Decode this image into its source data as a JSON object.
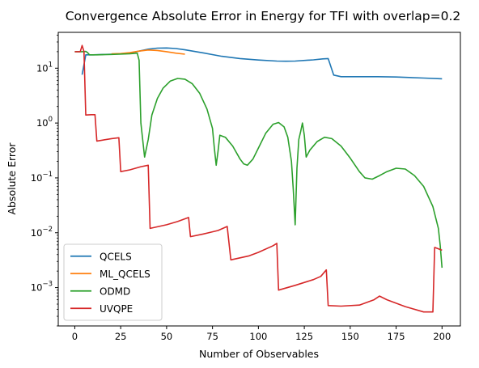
{
  "chart_data": {
    "type": "line",
    "title": "Convergence Absolute Error in Energy for TFI with overlap=0.2",
    "xlabel": "Number of Observables",
    "ylabel": "Absolute Error",
    "xlim": [
      -9,
      210
    ],
    "ylim": [
      0.0002,
      45
    ],
    "yscale": "log",
    "xticks": [
      0,
      25,
      50,
      75,
      100,
      125,
      150,
      175,
      200
    ],
    "yticks": [
      {
        "value": 0.001,
        "base": "10",
        "exp": "−3"
      },
      {
        "value": 0.01,
        "base": "10",
        "exp": "−2"
      },
      {
        "value": 0.1,
        "base": "10",
        "exp": "−1"
      },
      {
        "value": 1,
        "base": "10",
        "exp": "0"
      },
      {
        "value": 10,
        "base": "10",
        "exp": "1"
      }
    ],
    "legend": {
      "position": "lower-left"
    },
    "series": [
      {
        "name": "QCELS",
        "color": "#1f77b4",
        "points": [
          [
            4,
            7.6
          ],
          [
            6,
            17.5
          ],
          [
            10,
            17.5
          ],
          [
            20,
            18.0
          ],
          [
            30,
            18.8
          ],
          [
            35,
            20.5
          ],
          [
            40,
            22.2
          ],
          [
            45,
            23.2
          ],
          [
            50,
            23.4
          ],
          [
            55,
            22.8
          ],
          [
            60,
            21.6
          ],
          [
            70,
            19.0
          ],
          [
            80,
            16.5
          ],
          [
            90,
            15.0
          ],
          [
            100,
            14.1
          ],
          [
            110,
            13.5
          ],
          [
            115,
            13.4
          ],
          [
            120,
            13.5
          ],
          [
            130,
            14.2
          ],
          [
            135,
            14.8
          ],
          [
            138,
            15.0
          ],
          [
            141,
            7.5
          ],
          [
            145,
            7.0
          ],
          [
            155,
            7.0
          ],
          [
            165,
            7.0
          ],
          [
            175,
            6.9
          ],
          [
            190,
            6.6
          ],
          [
            200,
            6.4
          ]
        ]
      },
      {
        "name": "ML_QCELS",
        "color": "#ff7f0e",
        "points": [
          [
            20,
            18.3
          ],
          [
            25,
            18.5
          ],
          [
            30,
            19.2
          ],
          [
            35,
            20.5
          ],
          [
            40,
            21.5
          ],
          [
            45,
            21.0
          ],
          [
            50,
            20.0
          ],
          [
            55,
            18.8
          ],
          [
            60,
            18.0
          ]
        ]
      },
      {
        "name": "ODMD",
        "color": "#2ca02c",
        "points": [
          [
            0,
            20.0
          ],
          [
            4,
            20.0
          ],
          [
            6,
            20.2
          ],
          [
            7,
            19.2
          ],
          [
            8,
            17.5
          ],
          [
            12,
            17.5
          ],
          [
            20,
            17.8
          ],
          [
            30,
            18.3
          ],
          [
            34,
            18.8
          ],
          [
            35,
            14.0
          ],
          [
            36,
            1.0
          ],
          [
            38,
            0.24
          ],
          [
            40,
            0.5
          ],
          [
            42,
            1.4
          ],
          [
            45,
            2.8
          ],
          [
            48,
            4.3
          ],
          [
            52,
            5.8
          ],
          [
            56,
            6.5
          ],
          [
            60,
            6.3
          ],
          [
            64,
            5.2
          ],
          [
            68,
            3.5
          ],
          [
            72,
            1.8
          ],
          [
            75,
            0.8
          ],
          [
            76,
            0.35
          ],
          [
            77,
            0.17
          ],
          [
            78,
            0.3
          ],
          [
            79,
            0.6
          ],
          [
            82,
            0.55
          ],
          [
            86,
            0.38
          ],
          [
            90,
            0.22
          ],
          [
            92,
            0.18
          ],
          [
            94,
            0.17
          ],
          [
            97,
            0.22
          ],
          [
            100,
            0.35
          ],
          [
            104,
            0.65
          ],
          [
            108,
            0.95
          ],
          [
            111,
            1.02
          ],
          [
            114,
            0.85
          ],
          [
            116,
            0.55
          ],
          [
            118,
            0.2
          ],
          [
            119,
            0.06
          ],
          [
            120,
            0.014
          ],
          [
            121,
            0.15
          ],
          [
            122,
            0.5
          ],
          [
            123,
            0.7
          ],
          [
            124,
            1.0
          ],
          [
            125,
            0.6
          ],
          [
            126,
            0.24
          ],
          [
            128,
            0.32
          ],
          [
            132,
            0.46
          ],
          [
            136,
            0.55
          ],
          [
            140,
            0.52
          ],
          [
            145,
            0.38
          ],
          [
            150,
            0.23
          ],
          [
            155,
            0.13
          ],
          [
            158,
            0.1
          ],
          [
            162,
            0.095
          ],
          [
            166,
            0.11
          ],
          [
            170,
            0.13
          ],
          [
            175,
            0.15
          ],
          [
            180,
            0.145
          ],
          [
            185,
            0.11
          ],
          [
            190,
            0.07
          ],
          [
            195,
            0.03
          ],
          [
            198,
            0.012
          ],
          [
            199,
            0.006
          ],
          [
            200,
            0.0023
          ]
        ]
      },
      {
        "name": "UVQPE",
        "color": "#d62728",
        "points": [
          [
            0,
            20.0
          ],
          [
            3,
            20.0
          ],
          [
            4,
            26.0
          ],
          [
            5,
            20.0
          ],
          [
            6,
            1.4
          ],
          [
            9,
            1.42
          ],
          [
            11,
            1.42
          ],
          [
            12,
            0.47
          ],
          [
            20,
            0.52
          ],
          [
            24,
            0.54
          ],
          [
            25,
            0.13
          ],
          [
            30,
            0.14
          ],
          [
            36,
            0.16
          ],
          [
            40,
            0.17
          ],
          [
            41,
            0.012
          ],
          [
            50,
            0.014
          ],
          [
            56,
            0.016
          ],
          [
            62,
            0.019
          ],
          [
            63,
            0.0085
          ],
          [
            70,
            0.0095
          ],
          [
            78,
            0.011
          ],
          [
            83,
            0.013
          ],
          [
            85,
            0.0032
          ],
          [
            95,
            0.0038
          ],
          [
            100,
            0.0044
          ],
          [
            108,
            0.0058
          ],
          [
            110,
            0.0064
          ],
          [
            111,
            0.0009
          ],
          [
            120,
            0.0011
          ],
          [
            130,
            0.0014
          ],
          [
            134,
            0.0016
          ],
          [
            137,
            0.0021
          ],
          [
            138,
            0.00047
          ],
          [
            145,
            0.00046
          ],
          [
            155,
            0.00048
          ],
          [
            163,
            0.0006
          ],
          [
            166,
            0.0007
          ],
          [
            170,
            0.0006
          ],
          [
            180,
            0.00045
          ],
          [
            190,
            0.00036
          ],
          [
            195,
            0.00036
          ],
          [
            196,
            0.0054
          ],
          [
            200,
            0.0048
          ]
        ]
      }
    ]
  }
}
